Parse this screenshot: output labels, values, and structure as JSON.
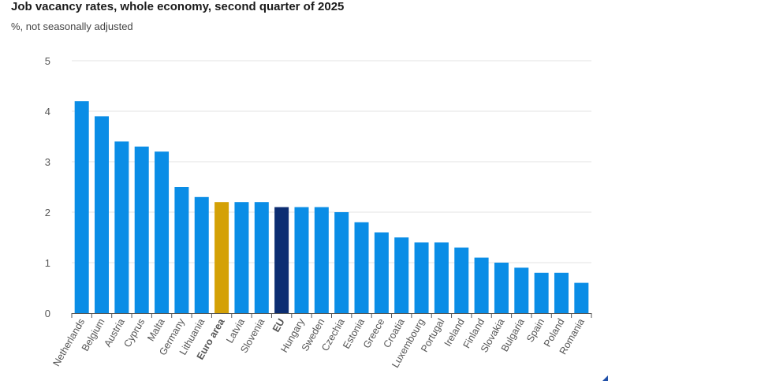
{
  "chart_data": {
    "type": "bar",
    "title": "Job vacancy rates, whole economy, second quarter of 2025",
    "subtitle": "%, not seasonally adjusted",
    "xlabel": "",
    "ylabel": "",
    "ylim": [
      0,
      5
    ],
    "yticks": [
      "0",
      "1",
      "2",
      "3",
      "4",
      "5"
    ],
    "grid": true,
    "legend": "none",
    "categories": [
      "Netherlands",
      "Belgium",
      "Austria",
      "Cyprus",
      "Malta",
      "Germany",
      "Lithuania",
      "Euro area",
      "Latvia",
      "Slovenia",
      "EU",
      "Hungary",
      "Sweden",
      "Czechia",
      "Estonia",
      "Greece",
      "Croatia",
      "Luxembourg",
      "Portugal",
      "Ireland",
      "Finland",
      "Slovakia",
      "Bulgaria",
      "Spain",
      "Poland",
      "Romania"
    ],
    "values": [
      4.2,
      3.9,
      3.4,
      3.3,
      3.2,
      2.5,
      2.3,
      2.2,
      2.2,
      2.2,
      2.1,
      2.1,
      2.1,
      2.0,
      1.8,
      1.6,
      1.5,
      1.4,
      1.4,
      1.3,
      1.1,
      1.0,
      0.9,
      0.8,
      0.8,
      0.6
    ],
    "bold_categories": [
      "Euro area",
      "EU"
    ],
    "colors": {
      "default": "#0a8de6",
      "Euro area": "#d4a106",
      "EU": "#0c2d72"
    }
  }
}
